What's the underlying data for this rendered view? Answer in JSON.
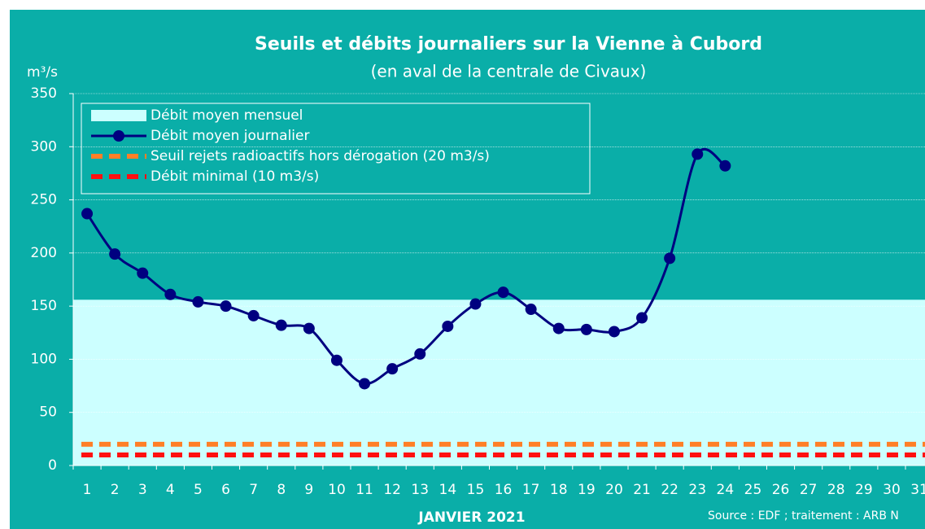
{
  "chart_data": {
    "type": "line",
    "title": "Seuils et débits journaliers sur la Vienne à Cubord",
    "subtitle": "(en aval de la centrale de Civaux)",
    "y_label": "m³/s",
    "x_label": "JANVIER 2021",
    "source": "Source : EDF ; traitement : ARB N",
    "categories": [
      "1",
      "2",
      "3",
      "4",
      "5",
      "6",
      "7",
      "8",
      "9",
      "10",
      "11",
      "12",
      "13",
      "14",
      "15",
      "16",
      "17",
      "18",
      "19",
      "20",
      "21",
      "22",
      "23",
      "24",
      "25",
      "26",
      "27",
      "28",
      "29",
      "30",
      "31"
    ],
    "series": [
      {
        "name": "Débit moyen mensuel",
        "color": "#ccffff",
        "value": 156,
        "style": "area"
      },
      {
        "name": "Débit moyen journalier",
        "color": "#000080",
        "style": "line",
        "values": [
          237,
          199,
          181,
          161,
          154,
          150,
          141,
          132,
          129,
          99,
          77,
          91,
          105,
          131,
          152,
          163,
          147,
          129,
          128,
          126,
          139,
          195,
          293,
          282,
          null,
          null,
          null,
          null,
          null,
          null,
          null
        ]
      },
      {
        "name": "Seuil rejets radioactifs hors dérogation (20 m3/s)",
        "color": "#ff7f27",
        "value": 20,
        "style": "dashed"
      },
      {
        "name": "Débit minimal (10 m3/s)",
        "color": "#ff1010",
        "value": 10,
        "style": "dashed"
      }
    ],
    "ylim": [
      0,
      350
    ],
    "yticks": [
      0,
      50,
      100,
      150,
      200,
      250,
      300,
      350
    ],
    "grid": true,
    "legend": "upper left"
  }
}
